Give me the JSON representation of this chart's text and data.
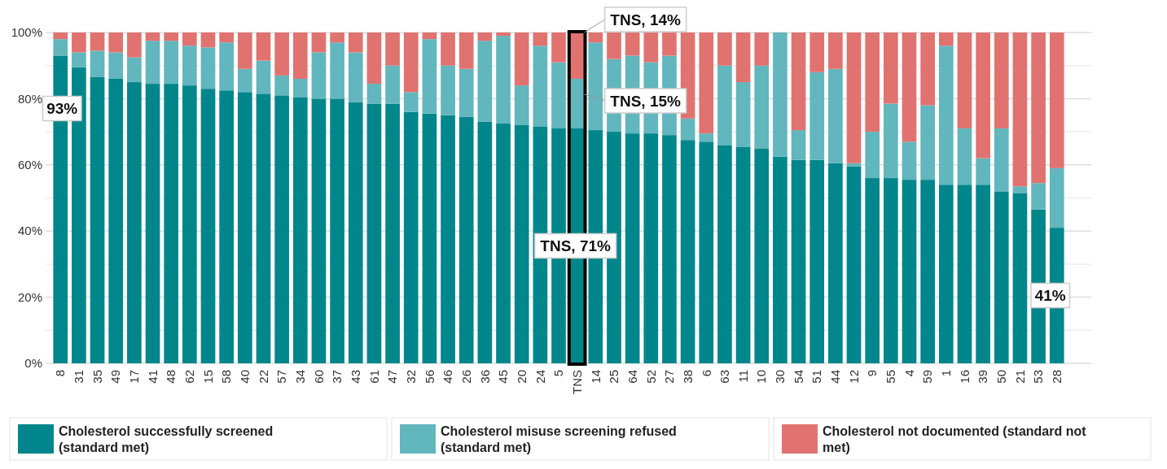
{
  "chart_data": {
    "type": "bar",
    "stacked": true,
    "categories": [
      "8",
      "31",
      "35",
      "49",
      "17",
      "41",
      "48",
      "62",
      "15",
      "58",
      "40",
      "22",
      "57",
      "34",
      "60",
      "37",
      "43",
      "61",
      "47",
      "32",
      "56",
      "46",
      "26",
      "36",
      "45",
      "20",
      "24",
      "5",
      "TNS",
      "14",
      "25",
      "64",
      "52",
      "27",
      "38",
      "6",
      "63",
      "11",
      "10",
      "30",
      "54",
      "51",
      "44",
      "12",
      "9",
      "55",
      "4",
      "59",
      "1",
      "16",
      "39",
      "50",
      "21",
      "53",
      "28"
    ],
    "series": [
      {
        "name": "Cholesterol successfully screened (standard met)",
        "color": "#00868b",
        "values": [
          93,
          89.5,
          86.5,
          86,
          85,
          84.5,
          84.5,
          84,
          83,
          82.5,
          82,
          81.5,
          81,
          80.5,
          80,
          80,
          79,
          78.5,
          78.5,
          76,
          75.5,
          75,
          74.5,
          73,
          72.5,
          72,
          71.5,
          71,
          71,
          70.5,
          70,
          69.5,
          69.5,
          69,
          67.5,
          67,
          66,
          65.5,
          65,
          62.5,
          61.5,
          61.5,
          60.5,
          59.5,
          56,
          56,
          55.5,
          55.5,
          54,
          54,
          54,
          52,
          51.5,
          46.5,
          41
        ]
      },
      {
        "name": "Cholesterol misuse screening refused (standard met)",
        "color": "#62b6bd",
        "values": [
          5,
          4.5,
          8,
          8,
          7.5,
          13,
          13,
          12,
          12.5,
          14.5,
          7,
          10,
          6,
          5.5,
          14,
          17,
          15,
          6,
          11.5,
          6,
          22.5,
          15,
          14.5,
          24.5,
          26.5,
          12,
          24.5,
          20,
          15,
          26.5,
          22,
          23.5,
          21.5,
          24,
          6.5,
          2.5,
          24,
          19.5,
          25,
          37.5,
          9,
          26.5,
          28.5,
          1,
          14,
          22.5,
          11.5,
          22.5,
          42,
          17,
          8,
          19,
          2,
          8,
          18
        ]
      },
      {
        "name": "Cholesterol not documented (standard not met)",
        "color": "#e07370",
        "values": [
          2,
          6,
          5.5,
          6,
          7.5,
          2.5,
          2.5,
          4,
          4.5,
          3,
          11,
          8.5,
          13,
          14,
          6,
          3,
          6,
          15.5,
          10,
          18,
          2,
          10,
          11,
          2.5,
          1,
          16,
          4,
          9,
          14,
          3,
          8,
          7,
          9,
          7,
          26,
          30.5,
          10,
          15,
          10,
          0,
          29.5,
          12,
          11,
          39.5,
          30,
          21.5,
          33,
          22,
          4,
          29,
          38,
          29,
          46.5,
          45.5,
          41
        ]
      }
    ],
    "ylim": [
      0,
      100
    ],
    "yticks": [
      {
        "value": 0,
        "label": "0%"
      },
      {
        "value": 10,
        "label": null
      },
      {
        "value": 20,
        "label": "20%"
      },
      {
        "value": 30,
        "label": null
      },
      {
        "value": 40,
        "label": "40%"
      },
      {
        "value": 50,
        "label": null
      },
      {
        "value": 60,
        "label": "60%"
      },
      {
        "value": 70,
        "label": null
      },
      {
        "value": 80,
        "label": "80%"
      },
      {
        "value": 90,
        "label": null
      },
      {
        "value": 100,
        "label": "100%"
      }
    ],
    "grid": "y",
    "legend": "bottom",
    "annotations": [
      {
        "text": "93%",
        "x": "8",
        "y": 93
      },
      "TNS, 71%",
      {
        "text": "TNS, 15%",
        "x": "TNS",
        "y": 86
      },
      {
        "text": "TNS, 14%",
        "x": "TNS",
        "y": 100
      },
      "41%"
    ]
  }
}
